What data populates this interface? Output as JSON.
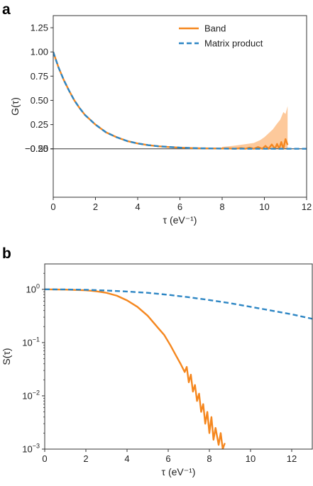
{
  "chart_data": [
    {
      "panel": "a",
      "type": "line",
      "xlabel": "τ (eV⁻¹)",
      "ylabel": "G(τ)",
      "xlim": [
        0,
        12
      ],
      "ylim": [
        -0.5,
        1.375
      ],
      "xticks": [
        0,
        2,
        4,
        6,
        8,
        10,
        12
      ],
      "xtick_labels": [
        "0",
        "2",
        "4",
        "6",
        "8",
        "10",
        "12"
      ],
      "yticks": [
        -0.5,
        -0.25,
        0,
        0.25,
        0.5,
        0.75,
        1.0,
        1.25
      ],
      "ytick_labels": [
        "−0.50",
        "−0.25",
        "0",
        "0.25",
        "0.50",
        "0.75",
        "1.00",
        "1.25"
      ],
      "zero_line": true,
      "grid": false,
      "legend_position": "top-right",
      "series": [
        {
          "name": "Band",
          "color": "#f5871f",
          "style": "solid",
          "x": [
            0,
            0.25,
            0.5,
            0.75,
            1,
            1.25,
            1.5,
            2,
            2.5,
            3,
            3.5,
            4,
            4.5,
            5,
            5.5,
            6,
            6.5,
            7,
            7.5,
            8,
            8.3,
            8.6,
            8.9,
            9.1,
            9.3,
            9.5,
            9.7,
            9.9,
            10.05,
            10.2,
            10.35,
            10.5,
            10.6,
            10.7,
            10.8,
            10.9,
            11.0,
            11.1
          ],
          "y": [
            1.0,
            0.84,
            0.71,
            0.6,
            0.5,
            0.42,
            0.35,
            0.25,
            0.17,
            0.12,
            0.08,
            0.055,
            0.038,
            0.026,
            0.018,
            0.012,
            0.008,
            0.005,
            0.004,
            0.003,
            0.004,
            -0.006,
            0.008,
            -0.01,
            0.012,
            -0.015,
            0.018,
            -0.02,
            0.03,
            -0.035,
            0.045,
            -0.04,
            0.05,
            -0.06,
            0.07,
            -0.03,
            0.1,
            0.04
          ]
        },
        {
          "name": "Matrix product",
          "color": "#2d86c4",
          "style": "dashed",
          "x": [
            0,
            0.25,
            0.5,
            0.75,
            1,
            1.25,
            1.5,
            2,
            2.5,
            3,
            3.5,
            4,
            4.5,
            5,
            6,
            7,
            8,
            9,
            10,
            11,
            12
          ],
          "y": [
            1.0,
            0.84,
            0.71,
            0.6,
            0.5,
            0.42,
            0.35,
            0.25,
            0.17,
            0.12,
            0.08,
            0.055,
            0.038,
            0.026,
            0.012,
            0.005,
            0.002,
            0.001,
            0.0005,
            0.0002,
            0.0001
          ]
        }
      ],
      "error_band": {
        "series": "Band",
        "color": "#fdbf8a",
        "x": [
          8.0,
          8.5,
          9.0,
          9.5,
          9.8,
          10.0,
          10.2,
          10.4,
          10.6,
          10.75,
          10.9,
          11.0,
          11.1
        ],
        "upper": [
          0.02,
          0.03,
          0.045,
          0.06,
          0.09,
          0.12,
          0.16,
          0.2,
          0.26,
          0.3,
          0.38,
          0.36,
          0.44
        ],
        "lower": [
          -0.01,
          -0.02,
          -0.04,
          -0.06,
          -0.08,
          -0.12,
          -0.16,
          -0.2,
          -0.25,
          -0.3,
          -0.36,
          -0.3,
          -0.4
        ]
      }
    },
    {
      "panel": "b",
      "type": "line",
      "xlabel": "τ (eV⁻¹)",
      "ylabel": "S(τ)",
      "xlim": [
        0,
        13
      ],
      "ylim": [
        0.001,
        3.0
      ],
      "yscale": "log",
      "xticks": [
        0,
        2,
        4,
        6,
        8,
        10,
        12
      ],
      "xtick_labels": [
        "0",
        "2",
        "4",
        "6",
        "8",
        "10",
        "12"
      ],
      "yticks": [
        0.001,
        0.01,
        0.1,
        1
      ],
      "ytick_labels": [
        {
          "base": "10",
          "exp": "−3"
        },
        {
          "base": "10",
          "exp": "−2"
        },
        {
          "base": "10",
          "exp": "−1"
        },
        {
          "base": "10",
          "exp": "0"
        }
      ],
      "grid": false,
      "series": [
        {
          "name": "Band",
          "color": "#f5871f",
          "style": "solid",
          "x": [
            0,
            1,
            2,
            2.5,
            3,
            3.5,
            4,
            4.5,
            5,
            5.5,
            5.8,
            6.1,
            6.4,
            6.6,
            6.8,
            6.9,
            7.0,
            7.1,
            7.2,
            7.3,
            7.4,
            7.5,
            7.6,
            7.7,
            7.8,
            7.9,
            8.0,
            8.1,
            8.2,
            8.3,
            8.45,
            8.55,
            8.65,
            8.75
          ],
          "y": [
            1.0,
            0.99,
            0.96,
            0.92,
            0.86,
            0.76,
            0.62,
            0.47,
            0.32,
            0.19,
            0.14,
            0.09,
            0.055,
            0.04,
            0.028,
            0.035,
            0.018,
            0.025,
            0.012,
            0.016,
            0.008,
            0.011,
            0.005,
            0.007,
            0.003,
            0.005,
            0.002,
            0.004,
            0.0015,
            0.0025,
            0.0012,
            0.002,
            0.001,
            0.0013
          ]
        },
        {
          "name": "Matrix product",
          "color": "#2d86c4",
          "style": "dashed",
          "x": [
            0,
            1,
            2,
            3,
            4,
            5,
            6,
            7,
            8,
            9,
            10,
            11,
            12,
            13
          ],
          "y": [
            1.0,
            0.995,
            0.98,
            0.95,
            0.91,
            0.86,
            0.79,
            0.71,
            0.63,
            0.55,
            0.47,
            0.4,
            0.34,
            0.28
          ]
        }
      ]
    }
  ]
}
